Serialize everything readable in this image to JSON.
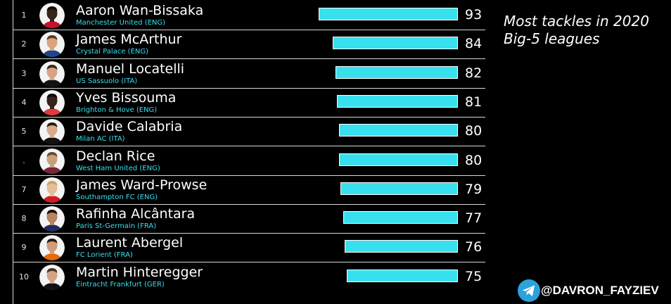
{
  "title_lines": [
    "Most tackles in 2020",
    "Big-5 leagues"
  ],
  "credit": "@DAVRON_FAYZIEV",
  "colors": {
    "bar": "#38e0ee",
    "club_text": "#38e0ee",
    "background": "#000000",
    "telegram": "#2aa3dc"
  },
  "chart_data": {
    "type": "bar",
    "orientation": "horizontal",
    "categories": [
      "Aaron Wan-Bissaka",
      "James McArthur",
      "Manuel Locatelli",
      "Yves Bissouma",
      "Davide Calabria",
      "Declan Rice",
      "James Ward-Prowse",
      "Rafinha Alcântara",
      "Laurent Abergel",
      "Martin Hinteregger"
    ],
    "values": [
      93,
      84,
      82,
      81,
      80,
      80,
      79,
      77,
      76,
      75
    ],
    "rows": [
      {
        "rank": "1",
        "name": "Aaron Wan-Bissaka",
        "club": "Manchester United (ENG)",
        "value": 93
      },
      {
        "rank": "2",
        "name": "James McArthur",
        "club": "Crystal Palace (ENG)",
        "value": 84
      },
      {
        "rank": "3",
        "name": "Manuel Locatelli",
        "club": "US Sassuolo (ITA)",
        "value": 82
      },
      {
        "rank": "4",
        "name": "Yves Bissouma",
        "club": "Brighton & Hove (ENG)",
        "value": 81
      },
      {
        "rank": "5",
        "name": "Davide Calabria",
        "club": "Milan AC (ITA)",
        "value": 80
      },
      {
        "rank": ".",
        "name": "Declan Rice",
        "club": "West Ham United (ENG)",
        "value": 80
      },
      {
        "rank": "7",
        "name": "James Ward-Prowse",
        "club": "Southampton FC (ENG)",
        "value": 79
      },
      {
        "rank": "8",
        "name": "Rafinha Alcântara",
        "club": "Paris St-Germain (FRA)",
        "value": 77
      },
      {
        "rank": "9",
        "name": "Laurent Abergel",
        "club": "FC Lorient (FRA)",
        "value": 76
      },
      {
        "rank": "10",
        "name": "Martin Hinteregger",
        "club": "Eintracht Frankfurt (GER)",
        "value": 75
      }
    ],
    "skin_tones": [
      "#3a2418",
      "#d9a57e",
      "#d7a488",
      "#35221a",
      "#d8ab8c",
      "#caa07c",
      "#e4c09a",
      "#b98462",
      "#cf9d7c",
      "#d3a586"
    ],
    "hair_tones": [
      "#120c08",
      "#5a3a22",
      "#3b2a1e",
      "#0e0906",
      "#2b1b10",
      "#6a4a2e",
      "#c9a56a",
      "#1a120c",
      "#2a1a10",
      "#4a3422"
    ],
    "shirt_tones": [
      "#c8102e",
      "#1b458f",
      "#111111",
      "#e03a3e",
      "#111111",
      "#7a263a",
      "#d71920",
      "#1f2c5c",
      "#e36b0a",
      "#111111"
    ]
  }
}
